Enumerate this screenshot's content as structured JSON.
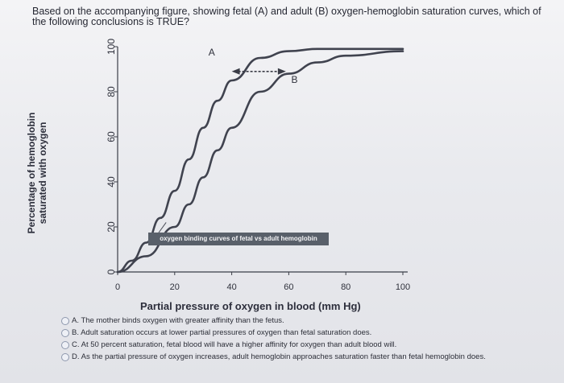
{
  "question": {
    "text": "Based on the accompanying figure, showing fetal (A) and adult (B) oxygen-hemoglobin saturation curves, which of the following conclusions is TRUE?"
  },
  "figure": {
    "ylabel_line1": "Percentage of hemoglobin",
    "ylabel_line2": "saturated with oxygen",
    "xlabel": "Partial pressure of oxygen in blood (mm Hg)",
    "caption": "oxygen binding curves of fetal vs adult hemoglobin"
  },
  "chart_data": {
    "type": "line",
    "xlabel": "Partial pressure of oxygen in blood (mm Hg)",
    "ylabel": "Percentage of hemoglobin saturated with oxygen",
    "xlim": [
      0,
      100
    ],
    "ylim": [
      0,
      100
    ],
    "x_ticks": [
      "0",
      "20",
      "40",
      "60",
      "80",
      "100"
    ],
    "y_ticks": [
      "0",
      "20",
      "40",
      "60",
      "80",
      "100"
    ],
    "series": [
      {
        "name": "A",
        "x": [
          0,
          5,
          10,
          15,
          20,
          25,
          30,
          35,
          40,
          50,
          60,
          70,
          80,
          100
        ],
        "y": [
          0,
          5,
          13,
          24,
          36,
          50,
          64,
          76,
          85,
          95,
          98,
          99,
          99,
          99
        ]
      },
      {
        "name": "B",
        "x": [
          0,
          10,
          20,
          25,
          30,
          35,
          40,
          50,
          60,
          70,
          80,
          100
        ],
        "y": [
          0,
          7,
          20,
          30,
          42,
          54,
          64,
          80,
          88,
          93,
          96,
          98
        ]
      }
    ],
    "annotations": [
      "oxygen binding curves of fetal vs adult hemoglobin"
    ]
  },
  "options": [
    {
      "letter": "A",
      "text": "A. The mother binds oxygen with greater affinity than the fetus."
    },
    {
      "letter": "B",
      "text": "B. Adult saturation occurs at lower partial pressures of oxygen than fetal saturation does."
    },
    {
      "letter": "C",
      "text": "C. At 50 percent saturation, fetal blood will have a higher affinity for oxygen than adult blood will."
    },
    {
      "letter": "D",
      "text": "D. As the partial pressure of oxygen increases, adult hemoglobin approaches saturation faster than fetal hemoglobin does."
    }
  ]
}
